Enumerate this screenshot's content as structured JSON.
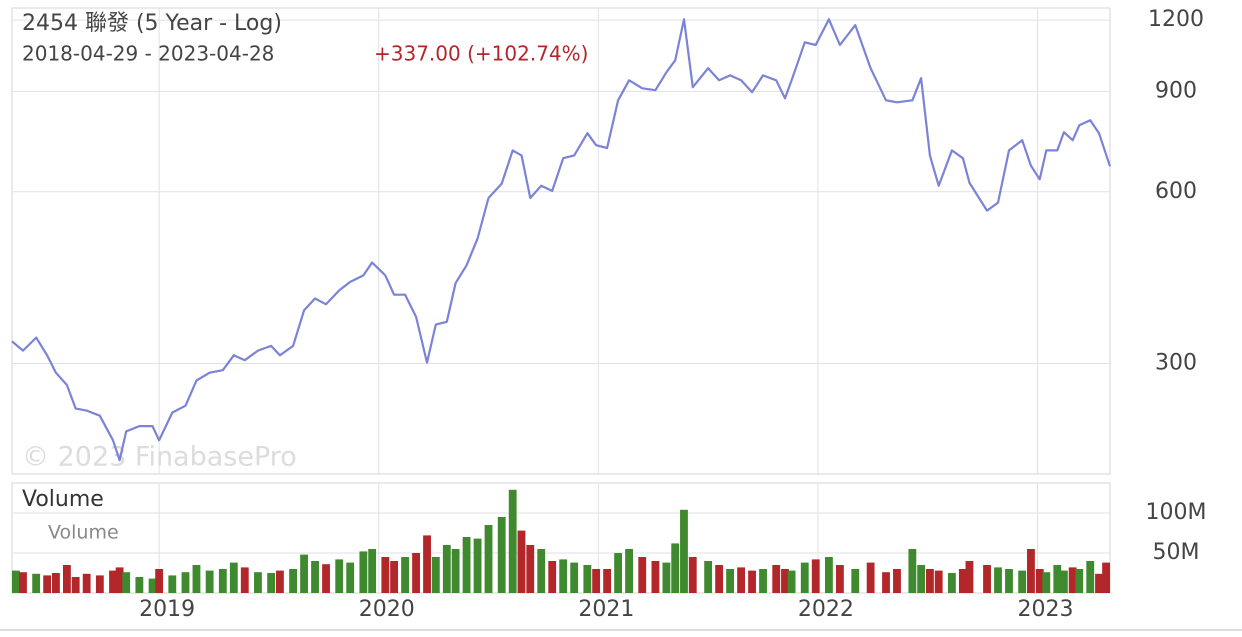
{
  "chart_data": [
    {
      "type": "line",
      "title": "2454 聯發 (5 Year - Log)",
      "subtitle": "2018-04-29 - 2023-04-28",
      "change_label": "+337.00 (+102.74%)",
      "watermark": "© 2023 FinabasePro",
      "log_scale": true,
      "grid": true,
      "x": [
        2018.33,
        2018.38,
        2018.44,
        2018.49,
        2018.53,
        2018.58,
        2018.62,
        2018.67,
        2018.73,
        2018.79,
        2018.82,
        2018.85,
        2018.91,
        2018.97,
        2019.0,
        2019.06,
        2019.12,
        2019.17,
        2019.23,
        2019.29,
        2019.34,
        2019.39,
        2019.45,
        2019.51,
        2019.55,
        2019.61,
        2019.66,
        2019.71,
        2019.76,
        2019.82,
        2019.87,
        2019.93,
        2019.97,
        2020.03,
        2020.07,
        2020.12,
        2020.17,
        2020.22,
        2020.26,
        2020.31,
        2020.35,
        2020.4,
        2020.45,
        2020.5,
        2020.56,
        2020.61,
        2020.65,
        2020.69,
        2020.74,
        2020.79,
        2020.84,
        2020.89,
        2020.95,
        2020.99,
        2021.04,
        2021.09,
        2021.14,
        2021.2,
        2021.26,
        2021.31,
        2021.35,
        2021.39,
        2021.43,
        2021.5,
        2021.55,
        2021.6,
        2021.65,
        2021.7,
        2021.75,
        2021.81,
        2021.85,
        2021.88,
        2021.94,
        2021.99,
        2022.05,
        2022.1,
        2022.17,
        2022.24,
        2022.31,
        2022.36,
        2022.43,
        2022.47,
        2022.51,
        2022.55,
        2022.61,
        2022.66,
        2022.69,
        2022.77,
        2022.82,
        2022.87,
        2022.93,
        2022.97,
        2023.01,
        2023.04,
        2023.09,
        2023.12,
        2023.16,
        2023.19,
        2023.24,
        2023.28,
        2023.33
      ],
      "series": [
        {
          "color": "#7b83d6",
          "values": [
            328,
            316,
            333,
            310,
            289,
            275,
            250,
            248,
            243,
            220,
            203,
            228,
            233,
            233,
            220,
            246,
            253,
            280,
            289,
            292,
            310,
            304,
            316,
            322,
            310,
            322,
            372,
            390,
            381,
            403,
            417,
            428,
            451,
            428,
            396,
            396,
            362,
            301,
            351,
            355,
            415,
            446,
            497,
            585,
            620,
            709,
            695,
            585,
            615,
            602,
            687,
            695,
            760,
            724,
            716,
            868,
            941,
            911,
            904,
            972,
            1020,
            1204,
            915,
            988,
            941,
            960,
            941,
            897,
            960,
            941,
            875,
            941,
            1097,
            1085,
            1204,
            1085,
            1176,
            988,
            868,
            861,
            868,
            949,
            695,
            615,
            709,
            687,
            622,
            556,
            574,
            709,
            739,
            667,
            631,
            709,
            709,
            763,
            739,
            785,
            801,
            760,
            665
          ]
        }
      ],
      "xlim": [
        2018.33,
        2023.33
      ],
      "xticks": [
        2019,
        2020,
        2021,
        2022,
        2023
      ],
      "ylim": [
        192,
        1260
      ],
      "yticks": [
        300,
        600,
        900,
        1200
      ]
    },
    {
      "type": "bar",
      "title": "Volume",
      "up_color": "#3f8a2f",
      "down_color": "#b3262a",
      "x": [
        2018.33,
        2018.38,
        2018.44,
        2018.49,
        2018.53,
        2018.58,
        2018.62,
        2018.67,
        2018.73,
        2018.79,
        2018.82,
        2018.85,
        2018.91,
        2018.97,
        2019.0,
        2019.06,
        2019.12,
        2019.17,
        2019.23,
        2019.29,
        2019.34,
        2019.39,
        2019.45,
        2019.51,
        2019.55,
        2019.61,
        2019.66,
        2019.71,
        2019.76,
        2019.82,
        2019.87,
        2019.93,
        2019.97,
        2020.03,
        2020.07,
        2020.12,
        2020.17,
        2020.22,
        2020.26,
        2020.31,
        2020.35,
        2020.4,
        2020.45,
        2020.5,
        2020.56,
        2020.61,
        2020.65,
        2020.69,
        2020.74,
        2020.79,
        2020.84,
        2020.89,
        2020.95,
        2020.99,
        2021.04,
        2021.09,
        2021.14,
        2021.2,
        2021.26,
        2021.31,
        2021.35,
        2021.39,
        2021.43,
        2021.5,
        2021.55,
        2021.6,
        2021.65,
        2021.7,
        2021.75,
        2021.81,
        2021.85,
        2021.88,
        2021.94,
        2021.99,
        2022.05,
        2022.1,
        2022.17,
        2022.24,
        2022.31,
        2022.36,
        2022.43,
        2022.47,
        2022.51,
        2022.55,
        2022.61,
        2022.66,
        2022.69,
        2022.77,
        2022.82,
        2022.87,
        2022.93,
        2022.97,
        2023.01,
        2023.04,
        2023.09,
        2023.12,
        2023.16,
        2023.19,
        2023.24,
        2023.28,
        2023.33
      ],
      "series": [
        {
          "name": "Volume",
          "values": [
            28000000,
            26000000,
            24000000,
            22000000,
            25000000,
            35000000,
            20000000,
            24000000,
            22000000,
            28000000,
            32000000,
            26000000,
            20000000,
            18000000,
            30000000,
            22000000,
            26000000,
            35000000,
            28000000,
            30000000,
            38000000,
            32000000,
            26000000,
            25000000,
            28000000,
            30000000,
            48000000,
            40000000,
            36000000,
            42000000,
            38000000,
            52000000,
            55000000,
            45000000,
            40000000,
            45000000,
            50000000,
            72000000,
            45000000,
            60000000,
            55000000,
            70000000,
            68000000,
            85000000,
            95000000,
            129000000,
            78000000,
            60000000,
            55000000,
            40000000,
            42000000,
            38000000,
            35000000,
            30000000,
            30000000,
            50000000,
            55000000,
            45000000,
            40000000,
            38000000,
            62000000,
            104000000,
            45000000,
            40000000,
            35000000,
            30000000,
            32000000,
            28000000,
            30000000,
            35000000,
            30000000,
            28000000,
            38000000,
            42000000,
            45000000,
            35000000,
            30000000,
            38000000,
            26000000,
            30000000,
            55000000,
            35000000,
            30000000,
            28000000,
            25000000,
            30000000,
            40000000,
            35000000,
            32000000,
            30000000,
            28000000,
            55000000,
            30000000,
            26000000,
            35000000,
            28000000,
            32000000,
            30000000,
            40000000,
            24000000,
            38000000
          ]
        }
      ],
      "xlim": [
        2018.33,
        2023.33
      ],
      "ylim": [
        0,
        137500000
      ],
      "yticks": [
        {
          "value": 50000000,
          "label": "50M"
        },
        {
          "value": 100000000,
          "label": "100M"
        }
      ]
    }
  ]
}
